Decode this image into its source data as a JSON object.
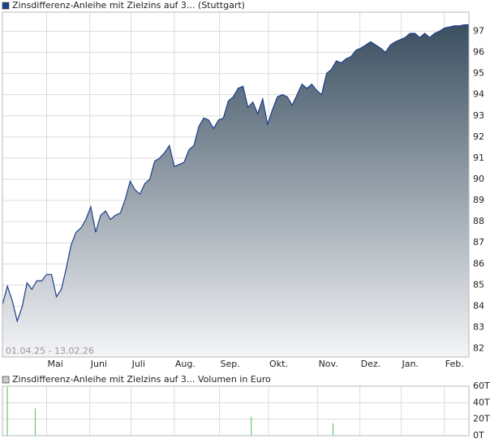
{
  "chart_data": [
    {
      "type": "area",
      "series": [
        {
          "name": "Zinsdifferenz-Anleihe mit Zielzins auf 3... (Stuttgart)",
          "color": "#1c3d8c",
          "values": [
            84.07,
            84.95,
            84.26,
            83.3,
            83.96,
            85.1,
            84.8,
            85.2,
            85.2,
            85.5,
            85.5,
            84.45,
            84.8,
            85.8,
            86.9,
            87.5,
            87.7,
            88.1,
            88.7,
            87.5,
            88.3,
            88.5,
            88.1,
            88.3,
            88.4,
            89.05,
            89.9,
            89.5,
            89.3,
            89.8,
            90.0,
            90.85,
            91.0,
            91.25,
            91.6,
            90.6,
            90.7,
            90.8,
            91.4,
            91.6,
            92.5,
            92.9,
            92.8,
            92.4,
            92.8,
            92.9,
            93.7,
            93.9,
            94.3,
            94.4,
            93.4,
            93.65,
            93.1,
            93.8,
            92.6,
            93.3,
            93.9,
            94.0,
            93.9,
            93.5,
            94.0,
            94.5,
            94.3,
            94.5,
            94.2,
            94.0,
            95.0,
            95.2,
            95.6,
            95.5,
            95.7,
            95.8,
            96.1,
            96.2,
            96.35,
            96.5,
            96.35,
            96.2,
            96.0,
            96.35,
            96.5,
            96.6,
            96.7,
            96.9,
            96.9,
            96.7,
            96.9,
            96.7,
            96.9,
            97.0,
            97.15,
            97.2,
            97.25,
            97.25,
            97.3,
            97.3
          ]
        }
      ],
      "date_range": "01.04.25 - 13.02.26",
      "xlim": [
        0,
        95
      ],
      "xticks": [
        {
          "value": 9,
          "label": "Mai"
        },
        {
          "value": 17.8,
          "label": "Juni"
        },
        {
          "value": 26.2,
          "label": "Juli"
        },
        {
          "value": 35,
          "label": "Aug."
        },
        {
          "value": 44.2,
          "label": "Sep."
        },
        {
          "value": 54.2,
          "label": "Okt."
        },
        {
          "value": 64.2,
          "label": "Nov."
        },
        {
          "value": 72.8,
          "label": "Dez."
        },
        {
          "value": 81.2,
          "label": "Jan."
        },
        {
          "value": 90,
          "label": "Feb."
        }
      ],
      "ylim": [
        81.6,
        97.9
      ],
      "yticks": [
        82,
        83,
        84,
        85,
        86,
        87,
        88,
        89,
        90,
        91,
        92,
        93,
        94,
        95,
        96,
        97
      ],
      "grid": true
    },
    {
      "type": "bar",
      "series": [
        {
          "name": "Zinsdifferenz-Anleihe mit Zielzins auf 3... Volumen in Euro",
          "color": "#4cc24c",
          "x": [
            1,
            6.67,
            50.67,
            67.33
          ],
          "values": [
            59000,
            33000,
            23000,
            15000
          ]
        }
      ],
      "legend_color": "#c8c8c8",
      "xlim": [
        0,
        95
      ],
      "ylim": [
        0,
        60000
      ],
      "yticks": [
        {
          "value": 0,
          "label": "0T"
        },
        {
          "value": 20000,
          "label": "20T"
        },
        {
          "value": 40000,
          "label": "40T"
        },
        {
          "value": 60000,
          "label": "60T"
        }
      ],
      "grid": true
    }
  ]
}
